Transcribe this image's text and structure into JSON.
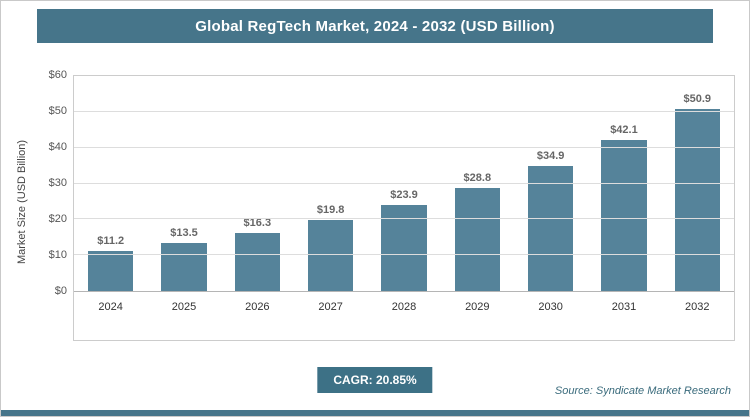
{
  "header": {
    "title": "Global RegTech Market, 2024 - 2032 (USD Billion)"
  },
  "chart_data": {
    "type": "bar",
    "title": "Global RegTech Market, 2024 - 2032 (USD Billion)",
    "categories": [
      "2024",
      "2025",
      "2026",
      "2027",
      "2028",
      "2029",
      "2030",
      "2031",
      "2032"
    ],
    "values": [
      11.2,
      13.5,
      16.3,
      19.8,
      23.9,
      28.8,
      34.9,
      42.1,
      50.9
    ],
    "value_labels": [
      "$11.2",
      "$13.5",
      "$16.3",
      "$19.8",
      "$23.9",
      "$28.8",
      "$34.9",
      "$42.1",
      "$50.9"
    ],
    "xlabel": "",
    "ylabel": "Market Size (USD Billion)",
    "ylim": [
      0,
      60
    ],
    "ytick_step": 10,
    "yticks": [
      "$0",
      "$10",
      "$20",
      "$30",
      "$40",
      "$50",
      "$60"
    ],
    "grid": true,
    "legend_position": "none",
    "bar_color": "#55839a"
  },
  "footer": {
    "cagr_label": "CAGR: 20.85%",
    "source": "Source: Syndicate Market Research"
  },
  "colors": {
    "accent": "#46758a",
    "bar": "#55839a",
    "gridline": "#dddddd"
  }
}
